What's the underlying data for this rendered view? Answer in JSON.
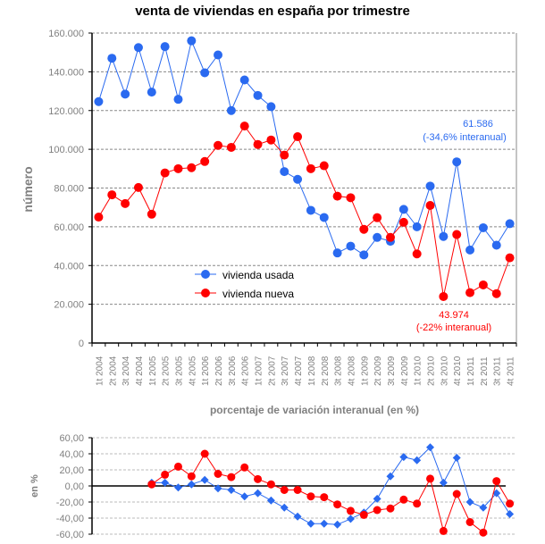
{
  "chart_data": [
    {
      "type": "line",
      "title": "venta de viviendas en españa por trimestre",
      "xlabel": "",
      "ylabel": "número",
      "ylim": [
        0,
        160000
      ],
      "yticks": [
        "0",
        "20.000",
        "40.000",
        "60.000",
        "80.000",
        "100.000",
        "120.000",
        "140.000",
        "160.000"
      ],
      "grid": true,
      "legend_placement": "center-left",
      "categories": [
        "1t 2004",
        "2t 2004",
        "3t 2004",
        "4t 2004",
        "1t 2005",
        "2t 2005",
        "3t 2005",
        "4t 2005",
        "1t 2006",
        "2t 2006",
        "3t 2006",
        "4t 2006",
        "1t 2007",
        "2t 2007",
        "3t 2007",
        "4t 2007",
        "1t 2008",
        "2t 2008",
        "3t 2008",
        "4t 2008",
        "1t 2009",
        "2t 2009",
        "3t 2009",
        "4t 2009",
        "1t 2010",
        "2t 2010",
        "3t 2010",
        "4t 2010",
        "1t 2011",
        "2t 2011",
        "3t 2011",
        "4t 2011"
      ],
      "series": [
        {
          "name": "vivienda usada",
          "color": "#2a6af0",
          "values": [
            124600,
            147000,
            128500,
            152500,
            129500,
            153000,
            125800,
            156000,
            139500,
            148700,
            120000,
            135800,
            127800,
            122000,
            88500,
            84500,
            68500,
            64800,
            46500,
            50000,
            45500,
            54500,
            52500,
            69000,
            60000,
            81000,
            55000,
            93500,
            48000,
            59500,
            50500,
            61586
          ]
        },
        {
          "name": "vivienda nueva",
          "color": "#ff0000",
          "values": [
            65000,
            76500,
            72000,
            80300,
            66500,
            87800,
            90000,
            90500,
            93700,
            102000,
            101000,
            112000,
            102500,
            104800,
            97000,
            106500,
            90000,
            91500,
            75800,
            75000,
            58700,
            64700,
            54500,
            62300,
            46000,
            71000,
            24000,
            56000,
            26000,
            30000,
            25500,
            43974
          ]
        }
      ],
      "annotations": [
        {
          "series": "vivienda usada",
          "line1": "61.586",
          "line2": "(-34,6% interanual)"
        },
        {
          "series": "vivienda nueva",
          "line1": "43.974",
          "line2": "(-22% interanual)"
        }
      ]
    },
    {
      "type": "line",
      "title": "porcentaje de variación interanual (en %)",
      "xlabel": "",
      "ylabel": "en %",
      "ylim": [
        -60,
        60
      ],
      "yticks": [
        "-60,00",
        "-40,00",
        "-20,00",
        "0,00",
        "20,00",
        "40,00",
        "60,00"
      ],
      "grid": true,
      "categories_from": "1t 2005",
      "series": [
        {
          "color": "#2a6af0",
          "marker": "diamond",
          "values": [
            4,
            4,
            -2,
            2,
            7.5,
            -3,
            -5,
            -13,
            -9,
            -18,
            -27,
            -38,
            -47,
            -47,
            -48,
            -41,
            -33,
            -16,
            12,
            36,
            32,
            48,
            4,
            35,
            -20,
            -27,
            -9,
            -35
          ]
        },
        {
          "color": "#ff0000",
          "marker": "circle",
          "values": [
            2,
            14,
            24,
            12,
            40,
            15,
            11,
            23,
            8.5,
            2,
            -5,
            -5,
            -13,
            -14,
            -23,
            -31,
            -36,
            -30,
            -28,
            -17,
            -22,
            9,
            -56,
            -10,
            -45,
            -58,
            6,
            -22
          ]
        }
      ]
    }
  ]
}
